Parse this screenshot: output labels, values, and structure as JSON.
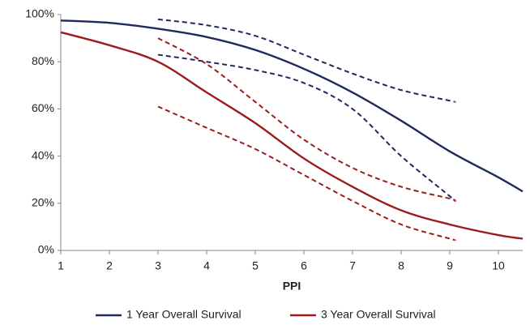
{
  "chart_data": {
    "type": "line",
    "x_label": "PPI",
    "xlim": [
      1,
      10.5
    ],
    "xticks": [
      1,
      2,
      3,
      4,
      5,
      6,
      7,
      8,
      9,
      10
    ],
    "ylim": [
      0,
      100
    ],
    "yticks": [
      {
        "value": 0,
        "label": "0%"
      },
      {
        "value": 20,
        "label": "20%"
      },
      {
        "value": 40,
        "label": "40%"
      },
      {
        "value": 60,
        "label": "60%"
      },
      {
        "value": 80,
        "label": "80%"
      },
      {
        "value": 100,
        "label": "100%"
      }
    ],
    "grid": false,
    "legend": "bottom",
    "series": [
      {
        "name": "1 Year Overall Survival",
        "color": "#1f2a5c",
        "dashed": false,
        "x": [
          1,
          2,
          3,
          4,
          5,
          6,
          7,
          8,
          9,
          10,
          10.5
        ],
        "values": [
          97.5,
          96.5,
          94,
          90.5,
          85,
          77,
          67,
          55,
          42,
          31,
          25
        ]
      },
      {
        "name": "3 Year Overall Survival",
        "color": "#9b1c1c",
        "dashed": false,
        "x": [
          1,
          2,
          3,
          4,
          5,
          6,
          7,
          8,
          9,
          10,
          10.5
        ],
        "values": [
          92.5,
          87,
          80,
          67,
          54,
          39,
          27,
          17,
          11,
          6.5,
          5
        ]
      },
      {
        "color": "#1f2a5c",
        "dashed": true,
        "x": [
          3,
          4,
          5,
          6,
          7,
          8,
          9,
          9.1
        ],
        "values": [
          98,
          95.5,
          91,
          83,
          75,
          68,
          63.5,
          63
        ]
      },
      {
        "color": "#1f2a5c",
        "dashed": true,
        "x": [
          3,
          4,
          5,
          6,
          7,
          8,
          9,
          9.1
        ],
        "values": [
          83,
          80,
          76.5,
          71,
          60,
          40,
          23,
          21
        ]
      },
      {
        "color": "#9b1c1c",
        "dashed": true,
        "x": [
          3,
          4,
          5,
          6,
          7,
          8,
          9,
          9.1
        ],
        "values": [
          90,
          79,
          63,
          47,
          35,
          27,
          22,
          21
        ]
      },
      {
        "color": "#9b1c1c",
        "dashed": true,
        "x": [
          3,
          4,
          5,
          6,
          7,
          8,
          9,
          9.1
        ],
        "values": [
          61,
          52,
          43,
          32,
          21,
          11,
          5,
          4.5
        ]
      }
    ]
  }
}
